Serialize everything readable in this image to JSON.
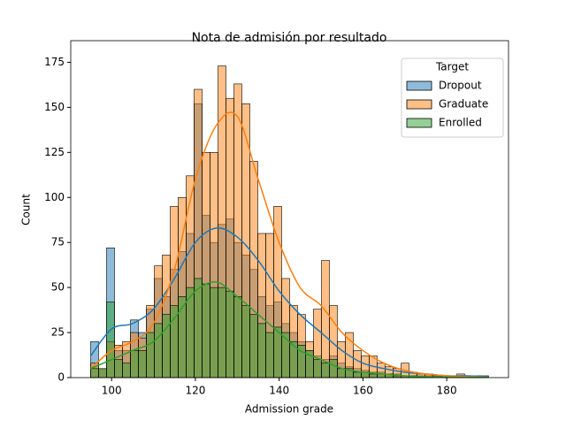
{
  "chart_data": {
    "type": "histogram",
    "title": "Nota de admisión por resultado",
    "xlabel": "Admission grade",
    "ylabel": "Count",
    "legend_title": "Target",
    "legend_loc": "upper right",
    "xlim": [
      90.25,
      194.75
    ],
    "ylim": [
      0,
      187
    ],
    "xticks": [
      100,
      120,
      140,
      160,
      180
    ],
    "yticks": [
      0,
      25,
      50,
      75,
      100,
      125,
      150,
      175
    ],
    "bins": [
      95,
      96.9,
      98.8,
      100.7,
      102.6,
      104.5,
      106.4,
      108.3,
      110.2,
      112.1,
      114,
      115.9,
      117.8,
      119.7,
      121.6,
      123.5,
      125.4,
      127.3,
      129.2,
      131.1,
      133,
      134.9,
      136.8,
      138.7,
      140.6,
      142.5,
      144.4,
      146.3,
      148.2,
      150.1,
      152,
      153.9,
      155.8,
      157.7,
      159.6,
      161.5,
      163.4,
      165.3,
      167.2,
      169.1,
      171,
      172.9,
      174.8,
      176.7,
      178.6,
      180.5,
      182.4,
      184.3,
      186.2,
      188.1,
      190
    ],
    "kde_x": [
      95,
      100,
      105,
      110,
      115,
      120,
      125,
      130,
      135,
      140,
      145,
      150,
      155,
      160,
      165,
      170,
      175,
      180,
      185,
      190
    ],
    "series": [
      {
        "name": "Dropout",
        "color": "#1f77b4",
        "values": [
          20,
          5,
          72,
          15,
          15,
          32,
          25,
          38,
          55,
          45,
          60,
          70,
          80,
          152,
          90,
          75,
          85,
          88,
          75,
          68,
          60,
          45,
          40,
          42,
          30,
          25,
          20,
          15,
          12,
          10,
          12,
          8,
          6,
          5,
          4,
          3,
          3,
          2,
          2,
          1,
          1,
          1,
          1,
          0,
          1,
          0,
          0,
          0,
          1,
          1
        ],
        "kde": [
          12,
          27,
          30,
          38,
          55,
          75,
          83,
          78,
          65,
          48,
          35,
          25,
          15,
          8,
          5,
          3,
          2,
          1,
          1,
          0.5
        ]
      },
      {
        "name": "Graduate",
        "color": "#ff7f0e",
        "values": [
          8,
          5,
          20,
          18,
          20,
          25,
          22,
          40,
          62,
          68,
          95,
          100,
          112,
          160,
          125,
          125,
          173,
          155,
          163,
          152,
          120,
          80,
          80,
          95,
          55,
          40,
          35,
          20,
          38,
          65,
          40,
          20,
          25,
          15,
          12,
          12,
          8,
          6,
          5,
          8,
          3,
          2,
          2,
          1,
          1,
          1,
          2,
          0,
          1,
          0
        ],
        "kde": [
          5,
          15,
          20,
          30,
          60,
          110,
          140,
          145,
          110,
          75,
          50,
          40,
          25,
          15,
          8,
          4,
          2,
          1,
          0.5,
          0.2
        ]
      },
      {
        "name": "Enrolled",
        "color": "#2ca02c",
        "values": [
          5,
          5,
          42,
          10,
          8,
          15,
          15,
          25,
          30,
          35,
          40,
          45,
          50,
          55,
          52,
          50,
          50,
          48,
          45,
          40,
          35,
          30,
          25,
          28,
          25,
          20,
          18,
          15,
          10,
          8,
          10,
          5,
          5,
          3,
          3,
          2,
          2,
          2,
          1,
          1,
          1,
          0,
          0,
          0,
          1,
          0,
          0,
          0,
          0,
          0
        ],
        "kde": [
          5,
          10,
          15,
          20,
          33,
          48,
          53,
          45,
          35,
          25,
          15,
          10,
          5,
          3,
          2,
          1,
          0.5,
          0.3,
          0.1,
          0.1
        ]
      }
    ]
  }
}
